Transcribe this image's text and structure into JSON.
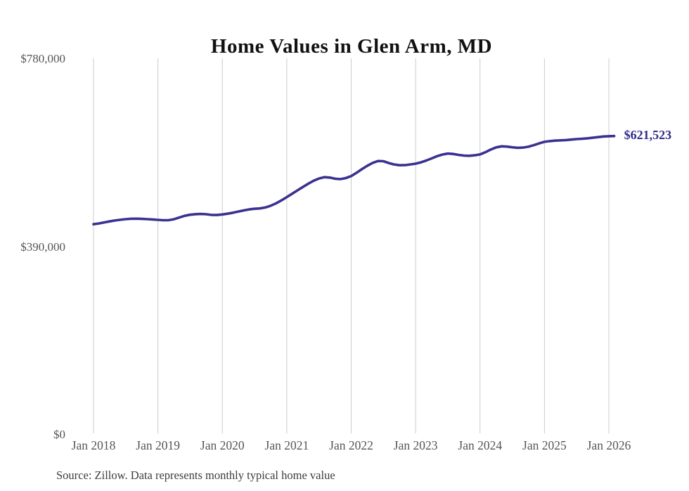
{
  "page": {
    "background_color": "#ffffff"
  },
  "chart_data": {
    "type": "line",
    "title": "Home Values in Glen Arm, MD",
    "source_note": "Source: Zillow. Data represents monthly typical home value",
    "series": [
      {
        "name": "Monthly typical home value",
        "x": [
          "Jan 2018",
          "Feb 2018",
          "Mar 2018",
          "Apr 2018",
          "May 2018",
          "Jun 2018",
          "Jul 2018",
          "Aug 2018",
          "Sep 2018",
          "Oct 2018",
          "Nov 2018",
          "Dec 2018",
          "Jan 2019",
          "Feb 2019",
          "Mar 2019",
          "Apr 2019",
          "May 2019",
          "Jun 2019",
          "Jul 2019",
          "Aug 2019",
          "Sep 2019",
          "Oct 2019",
          "Nov 2019",
          "Dec 2019",
          "Jan 2020",
          "Feb 2020",
          "Mar 2020",
          "Apr 2020",
          "May 2020",
          "Jun 2020",
          "Jul 2020",
          "Aug 2020",
          "Sep 2020",
          "Oct 2020",
          "Nov 2020",
          "Dec 2020",
          "Jan 2021",
          "Feb 2021",
          "Mar 2021",
          "Apr 2021",
          "May 2021",
          "Jun 2021",
          "Jul 2021",
          "Aug 2021",
          "Sep 2021",
          "Oct 2021",
          "Nov 2021",
          "Dec 2021",
          "Jan 2022",
          "Feb 2022",
          "Mar 2022",
          "Apr 2022",
          "May 2022",
          "Jun 2022",
          "Jul 2022",
          "Aug 2022",
          "Sep 2022",
          "Oct 2022",
          "Nov 2022",
          "Dec 2022",
          "Jan 2023",
          "Feb 2023",
          "Mar 2023",
          "Apr 2023",
          "May 2023",
          "Jun 2023",
          "Jul 2023",
          "Aug 2023",
          "Sep 2023",
          "Oct 2023",
          "Nov 2023",
          "Dec 2023",
          "Jan 2024",
          "Feb 2024",
          "Mar 2024",
          "Apr 2024",
          "May 2024",
          "Jun 2024",
          "Jul 2024",
          "Aug 2024",
          "Sep 2024",
          "Oct 2024",
          "Nov 2024",
          "Dec 2024",
          "Jan 2025",
          "Feb 2025",
          "Mar 2025",
          "Apr 2025",
          "May 2025",
          "Jun 2025",
          "Jul 2025",
          "Aug 2025",
          "Sep 2025",
          "Oct 2025",
          "Nov 2025",
          "Dec 2025",
          "Jan 2026",
          "Feb 2026"
        ],
        "values": [
          438500,
          440200,
          442300,
          444400,
          446300,
          447800,
          449000,
          449900,
          450100,
          449700,
          449000,
          448400,
          447600,
          446800,
          447000,
          448900,
          452600,
          456000,
          458300,
          459400,
          459800,
          459200,
          457800,
          457600,
          458800,
          460400,
          462500,
          464900,
          467300,
          469300,
          470600,
          471300,
          473200,
          476900,
          481900,
          488000,
          494800,
          501800,
          508800,
          515800,
          522600,
          528800,
          533400,
          536200,
          535400,
          533000,
          532200,
          534400,
          538400,
          545200,
          552800,
          559800,
          565800,
          569800,
          569400,
          565600,
          562600,
          561000,
          561200,
          562600,
          564200,
          567000,
          570800,
          575200,
          579800,
          583200,
          585200,
          584400,
          582400,
          581000,
          580600,
          581600,
          583400,
          588000,
          593600,
          598000,
          600200,
          599600,
          598200,
          597200,
          597600,
          599400,
          602600,
          606200,
          609600,
          611000,
          612000,
          612600,
          613200,
          614200,
          615200,
          615800,
          616800,
          618000,
          619400,
          620600,
          621200,
          621523
        ]
      }
    ],
    "end_label": "$621,523",
    "end_value": 621523,
    "x_tick_labels": [
      "Jan 2018",
      "Jan 2019",
      "Jan 2020",
      "Jan 2021",
      "Jan 2022",
      "Jan 2023",
      "Jan 2024",
      "Jan 2025",
      "Jan 2026"
    ],
    "y_tick_labels": [
      "$0",
      "$390,000",
      "$780,000"
    ],
    "y_ticks": [
      0,
      390000,
      780000
    ],
    "ylim": [
      0,
      780000
    ],
    "grid": "vertical-only",
    "legend_position": "none",
    "colors": {
      "line": "#3a3191",
      "end_label": "#2f2b8a",
      "gridline": "#cccccc",
      "axis_text": "#555555",
      "title_text": "#111111",
      "source_text": "#3c3c3c"
    }
  }
}
